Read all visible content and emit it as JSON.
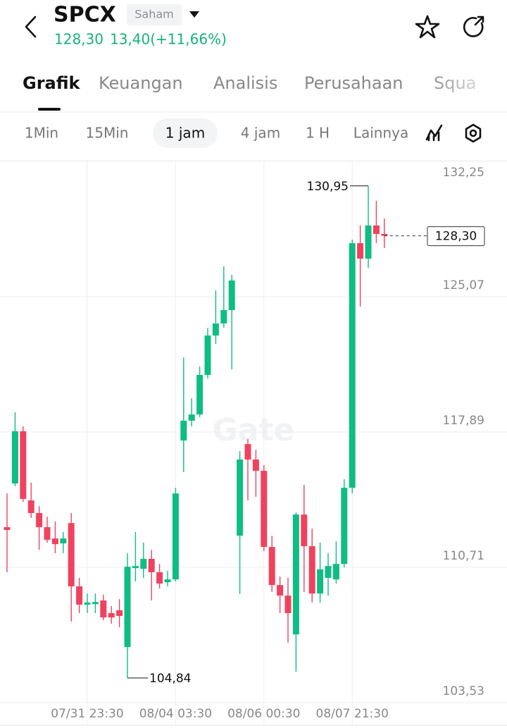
{
  "header": {
    "symbol": "SPCX",
    "badge": "Saham",
    "price": "128,30",
    "change": "13,40(+11,66%)"
  },
  "tabs": [
    "Grafik",
    "Keuangan",
    "Analisis",
    "Perusahaan",
    "Squa"
  ],
  "intervals": [
    "1Min",
    "15Min",
    "1 jam",
    "4 jam",
    "1 H",
    "Lainnya"
  ],
  "watermark": "Gate",
  "chart_data": {
    "type": "candlestick",
    "categories": [
      null,
      null,
      null,
      null,
      null,
      null,
      null,
      null,
      null,
      null,
      "07/31 23:30",
      null,
      null,
      null,
      null,
      null,
      null,
      null,
      null,
      null,
      null,
      "08/04 03:30",
      null,
      null,
      null,
      null,
      null,
      null,
      null,
      null,
      null,
      null,
      "08/06 00:30",
      null,
      null,
      null,
      null,
      null,
      null,
      null,
      null,
      null,
      null,
      "08/07 21:30",
      null,
      null,
      null,
      null
    ],
    "open": [
      112.84,
      115.16,
      117.93,
      114.26,
      113.59,
      112.84,
      112.24,
      111.98,
      113.06,
      109.7,
      108.73,
      108.76,
      108.95,
      108.28,
      108.43,
      106.48,
      110.67,
      110.63,
      111.16,
      110.45,
      109.92,
      110.07,
      117.44,
      118.49,
      118.82,
      120.92,
      123.01,
      123.65,
      124.36,
      112.39,
      117.25,
      116.43,
      115.83,
      111.79,
      109.77,
      109.21,
      107.15,
      113.51,
      111.83,
      109.32,
      110.15,
      110.07,
      110.89,
      114.93,
      127.91,
      127.09,
      128.85,
      128.4
    ],
    "high": [
      114.63,
      118.94,
      118.19,
      115.2,
      113.96,
      113.4,
      113.14,
      112.58,
      113.59,
      110.15,
      109.32,
      109.32,
      109.25,
      108.65,
      109.02,
      111.46,
      112.58,
      112.02,
      111.64,
      110.89,
      110.52,
      114.93,
      121.85,
      119.68,
      121.37,
      123.42,
      125.41,
      126.68,
      126.23,
      116.88,
      117.51,
      116.95,
      116.13,
      112.39,
      110.22,
      110.15,
      113.62,
      115.08,
      112.76,
      112.02,
      111.46,
      112.09,
      115.38,
      128.1,
      128.85,
      130.95,
      130.16,
      129.22
    ],
    "low": [
      110.45,
      115.01,
      114.19,
      113.33,
      111.64,
      112.02,
      111.46,
      111.46,
      107.83,
      108.28,
      108.28,
      108.28,
      107.9,
      107.72,
      107.53,
      104.84,
      109.96,
      110.15,
      108.95,
      109.59,
      109.7,
      109.96,
      115.76,
      118.19,
      118.67,
      120.73,
      122.56,
      123.42,
      121.22,
      109.29,
      114.26,
      114.45,
      111.57,
      109.4,
      108.28,
      106.71,
      105.17,
      109.4,
      108.84,
      108.84,
      109.21,
      109.85,
      110.71,
      114.63,
      124.55,
      126.6,
      127.91,
      127.65
    ],
    "close": [
      112.69,
      117.93,
      114.34,
      113.59,
      112.84,
      112.17,
      111.94,
      112.24,
      109.7,
      108.73,
      108.84,
      108.87,
      108.05,
      108.05,
      108.13,
      110.74,
      110.78,
      111.16,
      110.45,
      109.85,
      110.07,
      114.63,
      118.49,
      118.82,
      120.92,
      123.01,
      123.65,
      124.36,
      125.93,
      116.43,
      116.43,
      115.83,
      111.79,
      109.77,
      109.21,
      108.28,
      113.51,
      111.83,
      109.32,
      110.6,
      110.78,
      110.89,
      114.93,
      127.91,
      127.09,
      128.85,
      128.4,
      128.3
    ],
    "up_color": "#0fbd84",
    "down_color": "#f0425f",
    "ylim": [
      103.53,
      132.25
    ],
    "yticks": [
      {
        "value": 132.25,
        "label": "132,25"
      },
      {
        "value": 125.07,
        "label": "125,07"
      },
      {
        "value": 117.89,
        "label": "117,89"
      },
      {
        "value": 110.71,
        "label": "110,71"
      },
      {
        "value": 103.53,
        "label": "103,53"
      }
    ],
    "grid": true,
    "high_label": {
      "value": 130.95,
      "label": "130,95"
    },
    "low_label": {
      "value": 104.84,
      "label": "104,84"
    },
    "last_price": {
      "value": 128.3,
      "label": "128,30"
    }
  }
}
